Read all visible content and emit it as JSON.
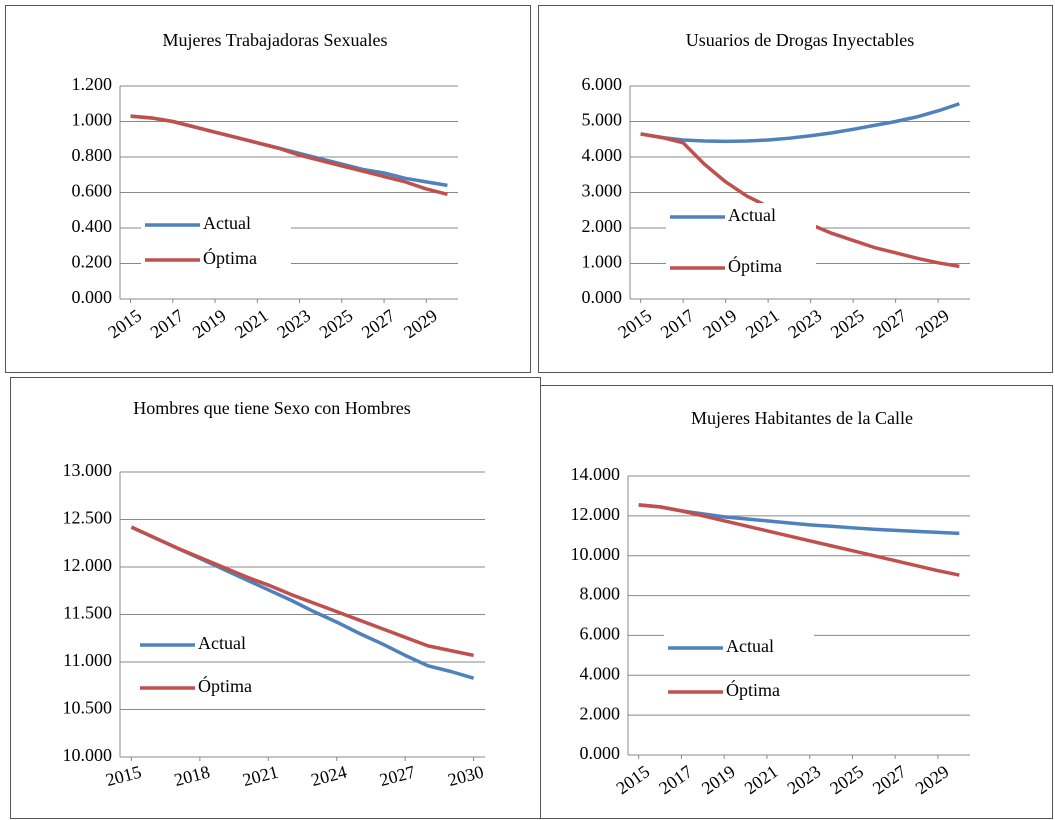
{
  "chart_data": [
    {
      "type": "line",
      "title": "Mujeres Trabajadoras Sexuales",
      "x": [
        2015,
        2016,
        2017,
        2018,
        2019,
        2020,
        2021,
        2022,
        2023,
        2024,
        2025,
        2026,
        2027,
        2028,
        2029,
        2030
      ],
      "xlim": [
        2014.5,
        2030.5
      ],
      "xticks": [
        2015,
        2017,
        2019,
        2021,
        2023,
        2025,
        2027,
        2029
      ],
      "ylim": [
        0,
        1.2
      ],
      "yticks": [
        {
          "value": 0,
          "label": "0.000"
        },
        {
          "value": 0.2,
          "label": "0.200"
        },
        {
          "value": 0.4,
          "label": "0.400"
        },
        {
          "value": 0.6,
          "label": "0.600"
        },
        {
          "value": 0.8,
          "label": "0.800"
        },
        {
          "value": 1.0,
          "label": "1.000"
        },
        {
          "value": 1.2,
          "label": "1.200"
        }
      ],
      "grid": true,
      "legend": "left",
      "series": [
        {
          "name": "Actual",
          "color": "#4f81bd",
          "values": [
            1.03,
            1.02,
            1.0,
            0.97,
            0.94,
            0.91,
            0.88,
            0.85,
            0.82,
            0.79,
            0.76,
            0.73,
            0.71,
            0.68,
            0.66,
            0.64
          ]
        },
        {
          "name": "Óptima",
          "color": "#c0504d",
          "values": [
            1.03,
            1.02,
            1.0,
            0.97,
            0.94,
            0.91,
            0.88,
            0.85,
            0.81,
            0.78,
            0.75,
            0.72,
            0.69,
            0.66,
            0.62,
            0.59
          ]
        }
      ]
    },
    {
      "type": "line",
      "title": "Usuarios de Drogas Inyectables",
      "x": [
        2015,
        2016,
        2017,
        2018,
        2019,
        2020,
        2021,
        2022,
        2023,
        2024,
        2025,
        2026,
        2027,
        2028,
        2029,
        2030
      ],
      "xlim": [
        2014.5,
        2030.5
      ],
      "xticks": [
        2015,
        2017,
        2019,
        2021,
        2023,
        2025,
        2027,
        2029
      ],
      "ylim": [
        0,
        6
      ],
      "yticks": [
        {
          "value": 0,
          "label": "0.000"
        },
        {
          "value": 1,
          "label": "1.000"
        },
        {
          "value": 2,
          "label": "2.000"
        },
        {
          "value": 3,
          "label": "3.000"
        },
        {
          "value": 4,
          "label": "4.000"
        },
        {
          "value": 5,
          "label": "5.000"
        },
        {
          "value": 6,
          "label": "6.000"
        }
      ],
      "grid": true,
      "legend": "left",
      "series": [
        {
          "name": "Actual",
          "color": "#4f81bd",
          "values": [
            4.65,
            4.55,
            4.48,
            4.45,
            4.44,
            4.45,
            4.48,
            4.53,
            4.6,
            4.68,
            4.78,
            4.89,
            5.0,
            5.13,
            5.3,
            5.5
          ]
        },
        {
          "name": "Óptima",
          "color": "#c0504d",
          "values": [
            4.65,
            4.55,
            4.4,
            3.8,
            3.3,
            2.9,
            2.6,
            2.35,
            2.1,
            1.85,
            1.65,
            1.45,
            1.3,
            1.15,
            1.02,
            0.92
          ]
        }
      ]
    },
    {
      "type": "line",
      "title": "Hombres que tiene Sexo con Hombres",
      "x": [
        2015,
        2016,
        2017,
        2018,
        2019,
        2020,
        2021,
        2022,
        2023,
        2024,
        2025,
        2026,
        2027,
        2028,
        2029,
        2030
      ],
      "xlim": [
        2014.5,
        2030.5
      ],
      "xticks": [
        2015,
        2018,
        2021,
        2024,
        2027,
        2030
      ],
      "ylim": [
        10,
        13
      ],
      "yticks": [
        {
          "value": 10,
          "label": "10.000"
        },
        {
          "value": 10.5,
          "label": "10.500"
        },
        {
          "value": 11,
          "label": "11.000"
        },
        {
          "value": 11.5,
          "label": "11.500"
        },
        {
          "value": 12,
          "label": "12.000"
        },
        {
          "value": 12.5,
          "label": "12.500"
        },
        {
          "value": 13,
          "label": "13.000"
        }
      ],
      "grid": true,
      "legend": "left",
      "series": [
        {
          "name": "Actual",
          "color": "#4f81bd",
          "values": [
            12.42,
            12.31,
            12.2,
            12.09,
            11.98,
            11.87,
            11.76,
            11.65,
            11.53,
            11.42,
            11.3,
            11.19,
            11.07,
            10.96,
            10.9,
            10.83
          ]
        },
        {
          "name": "Óptima",
          "color": "#c0504d",
          "values": [
            12.42,
            12.31,
            12.2,
            12.1,
            12.0,
            11.9,
            11.81,
            11.71,
            11.62,
            11.53,
            11.44,
            11.35,
            11.26,
            11.17,
            11.12,
            11.07
          ]
        }
      ]
    },
    {
      "type": "line",
      "title": "Mujeres Habitantes  de la Calle",
      "x": [
        2015,
        2016,
        2017,
        2018,
        2019,
        2020,
        2021,
        2022,
        2023,
        2024,
        2025,
        2026,
        2027,
        2028,
        2029,
        2030
      ],
      "xlim": [
        2014.5,
        2030.5
      ],
      "xticks": [
        2015,
        2017,
        2019,
        2021,
        2023,
        2025,
        2027,
        2029
      ],
      "ylim": [
        0,
        14
      ],
      "yticks": [
        {
          "value": 0,
          "label": "0.000"
        },
        {
          "value": 2,
          "label": "2.000"
        },
        {
          "value": 4,
          "label": "4.000"
        },
        {
          "value": 6,
          "label": "6.000"
        },
        {
          "value": 8,
          "label": "8.000"
        },
        {
          "value": 10,
          "label": "10.000"
        },
        {
          "value": 12,
          "label": "12.000"
        },
        {
          "value": 14,
          "label": "14.000"
        }
      ],
      "grid": true,
      "legend": "left",
      "series": [
        {
          "name": "Actual",
          "color": "#4f81bd",
          "values": [
            12.55,
            12.45,
            12.25,
            12.1,
            11.95,
            11.85,
            11.75,
            11.65,
            11.55,
            11.48,
            11.4,
            11.33,
            11.27,
            11.22,
            11.17,
            11.12
          ]
        },
        {
          "name": "Óptima",
          "color": "#c0504d",
          "values": [
            12.55,
            12.45,
            12.25,
            12.0,
            11.75,
            11.5,
            11.25,
            11.0,
            10.75,
            10.5,
            10.25,
            10.0,
            9.75,
            9.5,
            9.25,
            9.03
          ]
        }
      ]
    }
  ]
}
